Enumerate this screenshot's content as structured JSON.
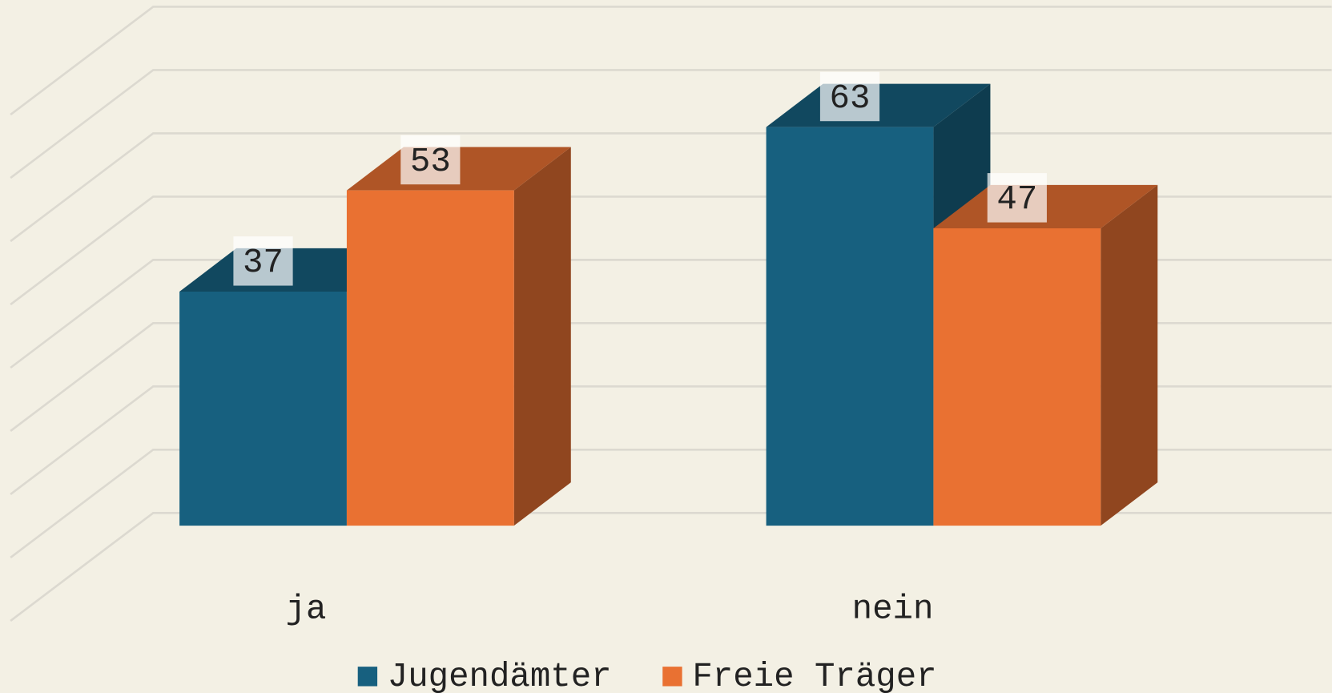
{
  "chart_data": {
    "type": "bar3d",
    "categories": [
      "ja",
      "nein"
    ],
    "series": [
      {
        "name": "Jugendämter",
        "color": "#17607f",
        "values": [
          37,
          63
        ]
      },
      {
        "name": "Freie Träger",
        "color": "#e97132",
        "values": [
          53,
          47
        ]
      }
    ],
    "ylim": [
      0,
      80
    ],
    "yticks": [
      0,
      10,
      20,
      30,
      40,
      50,
      60,
      70,
      80
    ],
    "grid": true,
    "legend": "bottom"
  }
}
